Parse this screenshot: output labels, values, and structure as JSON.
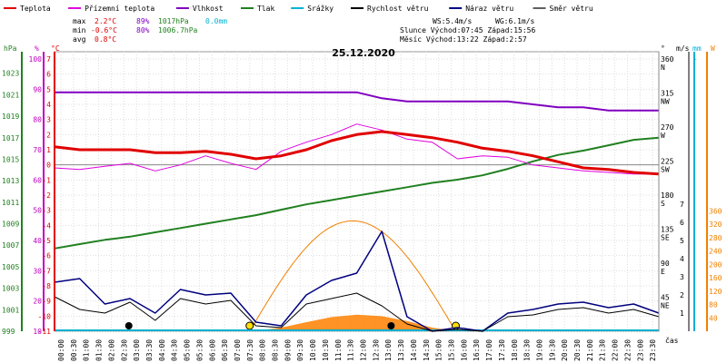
{
  "chart_data": {
    "type": "line",
    "title": "25.12.2020",
    "legend": [
      {
        "name": "Teplota",
        "color": "#e00000"
      },
      {
        "name": "Přízemní teplota",
        "color": "#e000e0"
      },
      {
        "name": "Vlhkost",
        "color": "#8000c0"
      },
      {
        "name": "Tlak",
        "color": "#208020"
      },
      {
        "name": "Srážky",
        "color": "#00b0d0"
      },
      {
        "name": "Rychlost větru",
        "color": "#000000"
      },
      {
        "name": "Náraz větru",
        "color": "#000080"
      },
      {
        "name": "Směr větru",
        "color": "#606060"
      }
    ],
    "stats": {
      "max_label": "max",
      "max_temp": "2.2°C",
      "max_hum": "89%",
      "max_press": "1017hPa",
      "max_rain": "0.0mm",
      "min_label": "min",
      "min_temp": "-0.6°C",
      "min_hum": "80%",
      "min_press": "1006.7hPa",
      "avg_label": "avg",
      "avg_temp": "0.8°C",
      "ws": "WS:5.4m/s",
      "wg": "WG:6.1m/s",
      "slunce": "Slunce Východ:07:45  Západ:15:56",
      "mesic": "Měsíc  Východ:13:22  Západ:2:57"
    },
    "axes": {
      "hpa_label": "hPa",
      "pct_label": "%",
      "c_label": "°C",
      "deg_label": "°",
      "ms_label": "m/s",
      "mm_label": "mm",
      "w_label": "W",
      "hpa_ticks": [
        "1023",
        "1021",
        "1019",
        "1017",
        "1015",
        "1013",
        "1011",
        "1009",
        "1007",
        "1005",
        "1003",
        "1001",
        "999"
      ],
      "pct_ticks": [
        "100",
        "90",
        "80",
        "70",
        "60",
        "50",
        "40",
        "30",
        "20",
        "10"
      ],
      "c_ticks": [
        "7",
        "6",
        "5",
        "4",
        "3",
        "2",
        "1",
        "0",
        "-1",
        "-2",
        "-3",
        "-4",
        "-5",
        "-6",
        "-7",
        "-8",
        "-9",
        "-10",
        "-11"
      ],
      "deg_ticks": [
        "360",
        "315",
        "270",
        "225",
        "180",
        "135",
        "90",
        "45"
      ],
      "deg_dirs": [
        "N",
        "NW",
        "W",
        "SW",
        "S",
        "SE",
        "E",
        "NE"
      ],
      "ms_ticks": [
        "7",
        "6",
        "5",
        "4",
        "3",
        "2",
        "1"
      ],
      "mm_top": "1",
      "w_ticks": [
        "360",
        "320",
        "280",
        "240",
        "200",
        "160",
        "120",
        "80",
        "40"
      ],
      "x_label": "čas",
      "x_ticks": [
        "00:00",
        "00:30",
        "01:00",
        "01:30",
        "02:00",
        "02:30",
        "03:00",
        "03:30",
        "04:00",
        "04:30",
        "05:00",
        "05:30",
        "06:00",
        "06:30",
        "07:00",
        "07:30",
        "08:00",
        "08:30",
        "09:00",
        "09:30",
        "10:00",
        "10:30",
        "11:00",
        "11:30",
        "12:00",
        "12:30",
        "13:00",
        "13:30",
        "14:00",
        "14:30",
        "15:00",
        "15:30",
        "16:00",
        "16:30",
        "17:00",
        "17:30",
        "18:00",
        "18:30",
        "19:00",
        "19:30",
        "20:00",
        "20:30",
        "21:00",
        "21:30",
        "22:00",
        "22:30",
        "23:00",
        "23:30"
      ]
    },
    "x_hours": [
      0,
      1,
      2,
      3,
      4,
      5,
      6,
      7,
      8,
      9,
      10,
      11,
      12,
      13,
      14,
      15,
      16,
      17,
      18,
      19,
      20,
      21,
      22,
      23,
      24
    ],
    "series": [
      {
        "name": "Teplota",
        "unit": "°C",
        "values": [
          1.2,
          1.0,
          1.0,
          1.0,
          0.8,
          0.8,
          0.9,
          0.7,
          0.4,
          0.6,
          1.0,
          1.6,
          2.0,
          2.2,
          2.0,
          1.8,
          1.5,
          1.1,
          0.9,
          0.6,
          0.2,
          -0.2,
          -0.3,
          -0.5,
          -0.6
        ]
      },
      {
        "name": "Přízemní teplota",
        "unit": "°C",
        "values": [
          -0.2,
          -0.3,
          -0.1,
          0.1,
          -0.4,
          0.0,
          0.6,
          0.1,
          -0.3,
          0.9,
          1.5,
          2.0,
          2.7,
          2.3,
          1.7,
          1.5,
          0.4,
          0.6,
          0.5,
          0.0,
          -0.2,
          -0.4,
          -0.5,
          -0.6,
          -0.6
        ]
      },
      {
        "name": "Vlhkost",
        "unit": "%",
        "values": [
          89,
          89,
          89,
          89,
          89,
          89,
          89,
          89,
          89,
          89,
          89,
          89,
          89,
          87,
          86,
          86,
          86,
          86,
          86,
          85,
          84,
          84,
          83,
          83,
          83
        ]
      },
      {
        "name": "Tlak",
        "unit": "hPa",
        "values": [
          1006.7,
          1007.1,
          1007.5,
          1007.8,
          1008.2,
          1008.6,
          1009.0,
          1009.4,
          1009.8,
          1010.3,
          1010.8,
          1011.2,
          1011.6,
          1012.0,
          1012.4,
          1012.8,
          1013.1,
          1013.5,
          1014.1,
          1014.8,
          1015.4,
          1015.8,
          1016.3,
          1016.8,
          1017.0
        ]
      },
      {
        "name": "Rychlost větru",
        "unit": "m/s",
        "values": [
          1.9,
          1.2,
          1.0,
          1.6,
          0.6,
          1.8,
          1.5,
          1.7,
          0.3,
          0.2,
          1.5,
          1.8,
          2.1,
          1.4,
          0.4,
          0.0,
          0.1,
          0.0,
          0.8,
          0.9,
          1.2,
          1.3,
          1.0,
          1.2,
          0.8
        ]
      },
      {
        "name": "Náraz větru",
        "unit": "m/s",
        "values": [
          2.7,
          2.9,
          1.5,
          1.8,
          1.0,
          2.3,
          2.0,
          2.1,
          0.5,
          0.3,
          2.0,
          2.8,
          3.2,
          5.5,
          0.8,
          0.0,
          0.2,
          0.0,
          1.0,
          1.2,
          1.5,
          1.6,
          1.3,
          1.5,
          1.0
        ]
      },
      {
        "name": "Slunce",
        "unit": "W",
        "values": [
          0,
          0,
          0,
          0,
          0,
          0,
          0,
          0,
          5,
          60,
          150,
          235,
          275,
          250,
          170,
          60,
          0,
          0,
          0,
          0,
          0,
          0,
          0,
          0,
          0
        ]
      },
      {
        "name": "Srážky",
        "unit": "mm",
        "values": [
          0,
          0,
          0,
          0,
          0,
          0,
          0,
          0,
          0,
          0,
          0,
          0,
          0,
          0,
          0,
          0,
          0,
          0,
          0,
          0,
          0,
          0,
          0,
          0,
          0
        ]
      }
    ],
    "sun_events": [
      "07:45",
      "15:56"
    ],
    "moon_events": [
      "02:57",
      "13:22"
    ],
    "grid": true
  }
}
